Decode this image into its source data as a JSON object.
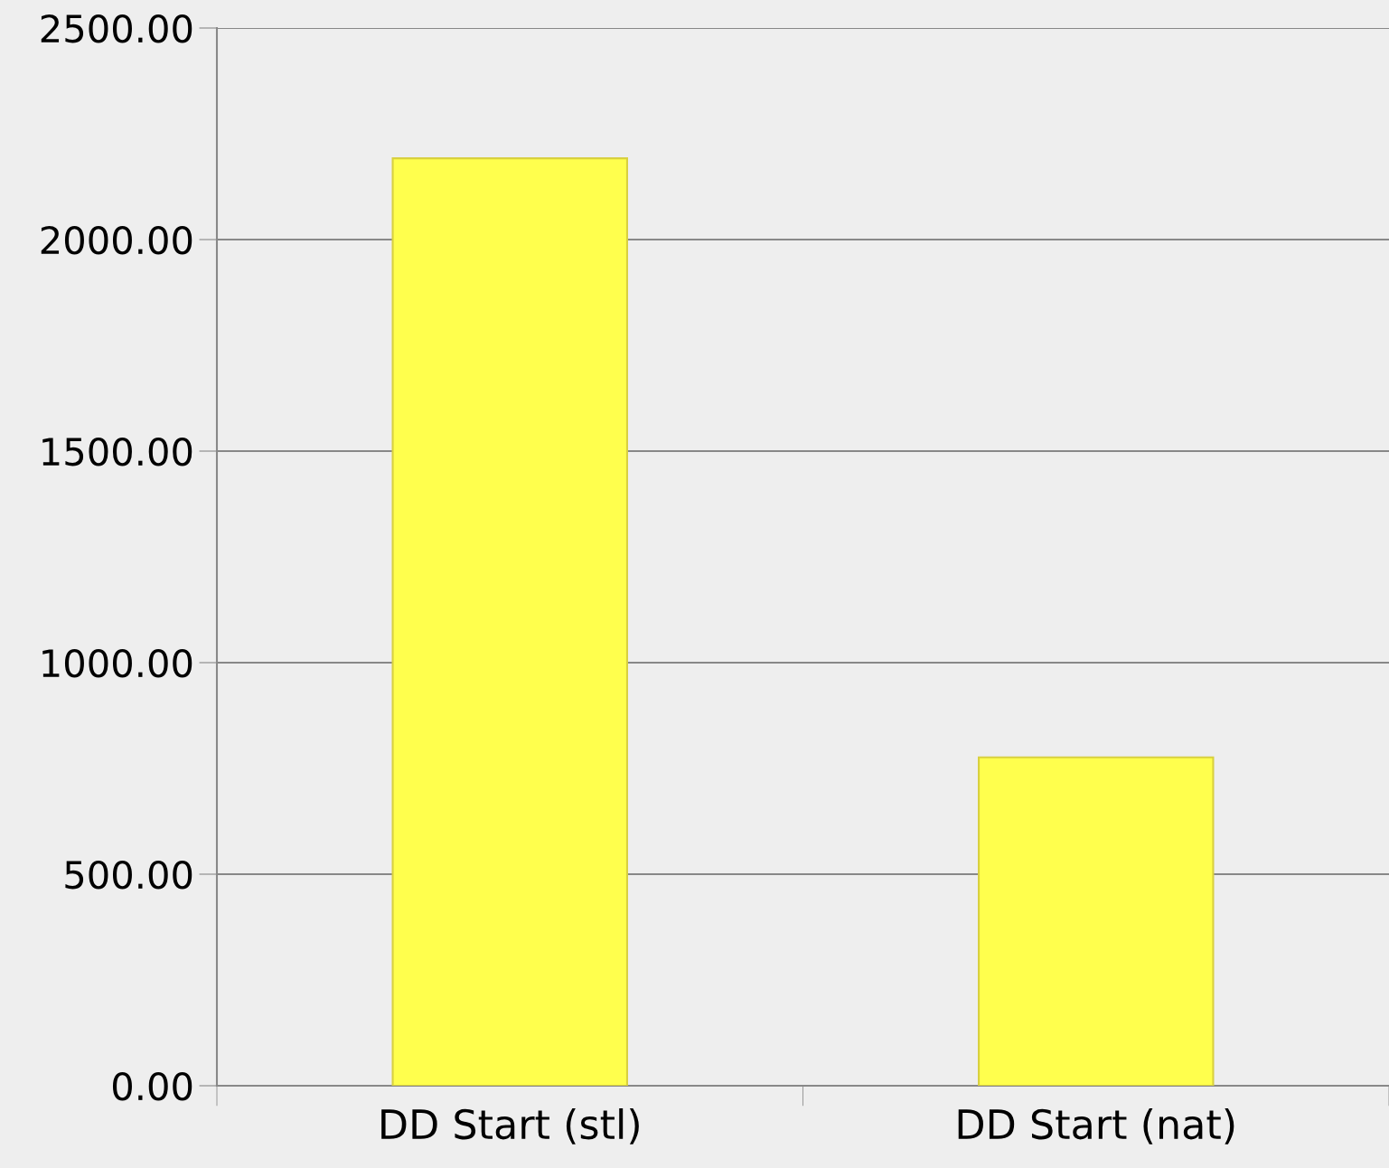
{
  "chart_data": {
    "type": "bar",
    "categories": [
      "DD Start (stl)",
      "DD Start (nat)"
    ],
    "values": [
      2192,
      776
    ],
    "color": "#ffff4d",
    "ylim": [
      0,
      2500
    ],
    "yticks": [
      {
        "value": 0,
        "label": "0.00"
      },
      {
        "value": 500,
        "label": "500.00"
      },
      {
        "value": 1000,
        "label": "1000.00"
      },
      {
        "value": 1500,
        "label": "1500.00"
      },
      {
        "value": 2000,
        "label": "2000.00"
      },
      {
        "value": 2500,
        "label": "2500.00"
      }
    ],
    "grid": "y",
    "legend": false
  }
}
